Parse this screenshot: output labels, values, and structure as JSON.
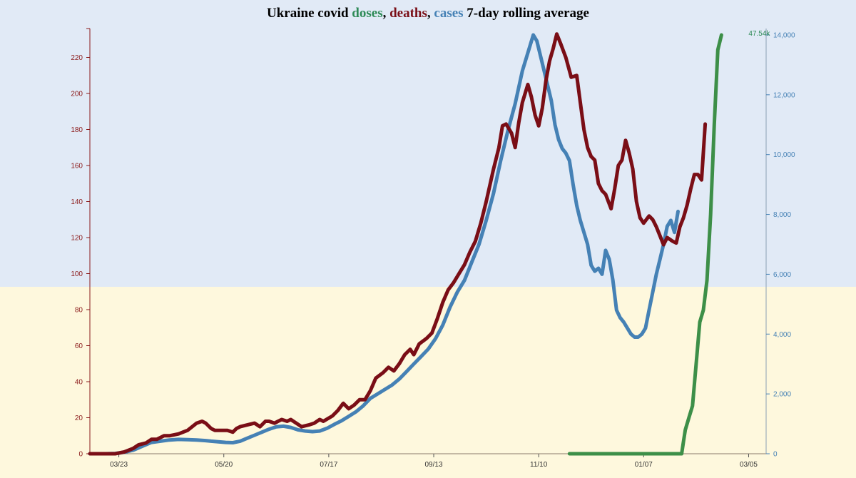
{
  "background": {
    "top_color": "#e1eaf6",
    "bottom_color": "#fef8dd"
  },
  "title": {
    "prefix": "Ukraine covid ",
    "doses": "doses",
    "sep1": ", ",
    "deaths": "deaths",
    "sep2": ", ",
    "cases": "cases",
    "suffix": " 7-day rolling average"
  },
  "colors": {
    "doses": "#2e8b57",
    "deaths": "#7a0e16",
    "cases": "#4581b5",
    "doses_line": "#3d8f48",
    "left_axis": "#8b1a1a",
    "right_axis": "#4581b5"
  },
  "chart_data": {
    "type": "line",
    "title": "Ukraine covid doses, deaths, cases 7-day rolling average",
    "x_ticks": [
      "03/23",
      "05/20",
      "07/17",
      "09/13",
      "11/10",
      "01/07",
      "03/05"
    ],
    "x_tick_days": [
      7,
      65,
      123,
      181,
      239,
      297,
      355
    ],
    "x_range_days": [
      -9,
      370
    ],
    "y_left": {
      "ticks": [
        0,
        20,
        40,
        60,
        80,
        100,
        120,
        140,
        160,
        180,
        200,
        220
      ],
      "range": [
        0,
        235
      ],
      "labels": [
        "0",
        "20",
        "40",
        "60",
        "80",
        "100",
        "120",
        "140",
        "160",
        "180",
        "200",
        "220"
      ]
    },
    "y_right": {
      "ticks": [
        0,
        2000,
        4000,
        6000,
        8000,
        10000,
        12000,
        14000
      ],
      "range": [
        0,
        14100
      ],
      "labels": [
        "0",
        "2,000",
        "4,000",
        "6,000",
        "8,000",
        "10,000",
        "12,000",
        "14,000"
      ]
    },
    "annotation": {
      "text": "47.54k",
      "day": 368,
      "y_right": 14000
    },
    "series": [
      {
        "name": "deaths",
        "axis": "left",
        "points": [
          [
            -9,
            0
          ],
          [
            0,
            0
          ],
          [
            5,
            0
          ],
          [
            10,
            1
          ],
          [
            15,
            3
          ],
          [
            18,
            5
          ],
          [
            22,
            6
          ],
          [
            25,
            8
          ],
          [
            28,
            8
          ],
          [
            32,
            10
          ],
          [
            35,
            10
          ],
          [
            40,
            11
          ],
          [
            45,
            13
          ],
          [
            50,
            17
          ],
          [
            53,
            18
          ],
          [
            55,
            17
          ],
          [
            58,
            14
          ],
          [
            60,
            13
          ],
          [
            63,
            13
          ],
          [
            67,
            13
          ],
          [
            70,
            12
          ],
          [
            72,
            14
          ],
          [
            74,
            15
          ],
          [
            78,
            16
          ],
          [
            82,
            17
          ],
          [
            85,
            15
          ],
          [
            88,
            18
          ],
          [
            90,
            18
          ],
          [
            93,
            17
          ],
          [
            95,
            18
          ],
          [
            97,
            19
          ],
          [
            100,
            18
          ],
          [
            102,
            19
          ],
          [
            105,
            17
          ],
          [
            108,
            15
          ],
          [
            112,
            16
          ],
          [
            115,
            17
          ],
          [
            118,
            19
          ],
          [
            120,
            18
          ],
          [
            125,
            21
          ],
          [
            128,
            24
          ],
          [
            131,
            28
          ],
          [
            134,
            25
          ],
          [
            137,
            27
          ],
          [
            140,
            30
          ],
          [
            143,
            30
          ],
          [
            146,
            35
          ],
          [
            149,
            42
          ],
          [
            153,
            45
          ],
          [
            156,
            48
          ],
          [
            159,
            46
          ],
          [
            162,
            50
          ],
          [
            165,
            55
          ],
          [
            168,
            58
          ],
          [
            170,
            55
          ],
          [
            173,
            61
          ],
          [
            177,
            64
          ],
          [
            180,
            67
          ],
          [
            183,
            75
          ],
          [
            186,
            84
          ],
          [
            189,
            91
          ],
          [
            192,
            95
          ],
          [
            195,
            100
          ],
          [
            198,
            105
          ],
          [
            201,
            112
          ],
          [
            204,
            118
          ],
          [
            207,
            128
          ],
          [
            210,
            140
          ],
          [
            214,
            158
          ],
          [
            217,
            170
          ],
          [
            219,
            182
          ],
          [
            221,
            183
          ],
          [
            224,
            178
          ],
          [
            226,
            170
          ],
          [
            228,
            184
          ],
          [
            230,
            195
          ],
          [
            233,
            205
          ],
          [
            235,
            198
          ],
          [
            237,
            188
          ],
          [
            239,
            182
          ],
          [
            241,
            192
          ],
          [
            243,
            207
          ],
          [
            245,
            218
          ],
          [
            247,
            225
          ],
          [
            249,
            233
          ],
          [
            251,
            228
          ],
          [
            254,
            220
          ],
          [
            257,
            209
          ],
          [
            260,
            210
          ],
          [
            262,
            195
          ],
          [
            264,
            180
          ],
          [
            266,
            170
          ],
          [
            268,
            165
          ],
          [
            270,
            163
          ],
          [
            272,
            150
          ],
          [
            274,
            146
          ],
          [
            276,
            144
          ],
          [
            279,
            136
          ],
          [
            281,
            147
          ],
          [
            283,
            160
          ],
          [
            285,
            163
          ],
          [
            287,
            174
          ],
          [
            289,
            167
          ],
          [
            291,
            158
          ],
          [
            293,
            140
          ],
          [
            295,
            131
          ],
          [
            297,
            128
          ],
          [
            300,
            132
          ],
          [
            302,
            130
          ],
          [
            304,
            126
          ],
          [
            306,
            121
          ],
          [
            308,
            116
          ],
          [
            310,
            120
          ],
          [
            313,
            118
          ],
          [
            315,
            117
          ],
          [
            317,
            126
          ],
          [
            319,
            131
          ],
          [
            321,
            138
          ],
          [
            323,
            147
          ],
          [
            325,
            155
          ],
          [
            327,
            155
          ],
          [
            329,
            152
          ],
          [
            331,
            183
          ]
        ]
      },
      {
        "name": "cases",
        "axis": "right",
        "points": [
          [
            -9,
            0
          ],
          [
            0,
            0
          ],
          [
            5,
            10
          ],
          [
            10,
            50
          ],
          [
            15,
            120
          ],
          [
            20,
            250
          ],
          [
            25,
            380
          ],
          [
            30,
            420
          ],
          [
            35,
            460
          ],
          [
            40,
            480
          ],
          [
            45,
            470
          ],
          [
            50,
            460
          ],
          [
            55,
            440
          ],
          [
            58,
            420
          ],
          [
            62,
            400
          ],
          [
            66,
            380
          ],
          [
            70,
            370
          ],
          [
            74,
            420
          ],
          [
            78,
            520
          ],
          [
            82,
            620
          ],
          [
            86,
            720
          ],
          [
            90,
            820
          ],
          [
            94,
            900
          ],
          [
            98,
            920
          ],
          [
            102,
            880
          ],
          [
            106,
            800
          ],
          [
            110,
            760
          ],
          [
            114,
            740
          ],
          [
            118,
            760
          ],
          [
            122,
            850
          ],
          [
            126,
            980
          ],
          [
            130,
            1100
          ],
          [
            134,
            1250
          ],
          [
            138,
            1400
          ],
          [
            142,
            1600
          ],
          [
            146,
            1850
          ],
          [
            150,
            2000
          ],
          [
            154,
            2150
          ],
          [
            158,
            2300
          ],
          [
            162,
            2500
          ],
          [
            166,
            2750
          ],
          [
            170,
            3000
          ],
          [
            174,
            3250
          ],
          [
            178,
            3500
          ],
          [
            182,
            3850
          ],
          [
            186,
            4300
          ],
          [
            190,
            4900
          ],
          [
            194,
            5400
          ],
          [
            198,
            5800
          ],
          [
            202,
            6400
          ],
          [
            206,
            7000
          ],
          [
            210,
            7800
          ],
          [
            214,
            8700
          ],
          [
            218,
            9800
          ],
          [
            222,
            10800
          ],
          [
            226,
            11700
          ],
          [
            230,
            12800
          ],
          [
            234,
            13600
          ],
          [
            236,
            14000
          ],
          [
            238,
            13800
          ],
          [
            240,
            13300
          ],
          [
            242,
            12800
          ],
          [
            244,
            12300
          ],
          [
            246,
            11800
          ],
          [
            248,
            11000
          ],
          [
            250,
            10500
          ],
          [
            252,
            10200
          ],
          [
            254,
            10050
          ],
          [
            256,
            9800
          ],
          [
            258,
            9000
          ],
          [
            260,
            8300
          ],
          [
            262,
            7800
          ],
          [
            264,
            7400
          ],
          [
            266,
            7000
          ],
          [
            268,
            6300
          ],
          [
            270,
            6100
          ],
          [
            272,
            6200
          ],
          [
            274,
            6000
          ],
          [
            276,
            6800
          ],
          [
            278,
            6500
          ],
          [
            280,
            5800
          ],
          [
            282,
            4800
          ],
          [
            284,
            4550
          ],
          [
            286,
            4400
          ],
          [
            288,
            4200
          ],
          [
            290,
            4000
          ],
          [
            292,
            3900
          ],
          [
            294,
            3900
          ],
          [
            296,
            4000
          ],
          [
            298,
            4200
          ],
          [
            300,
            4800
          ],
          [
            302,
            5400
          ],
          [
            304,
            6000
          ],
          [
            306,
            6500
          ],
          [
            308,
            7000
          ],
          [
            310,
            7600
          ],
          [
            312,
            7800
          ],
          [
            314,
            7400
          ],
          [
            316,
            8100
          ]
        ]
      },
      {
        "name": "doses",
        "axis": "right",
        "points": [
          [
            256,
            0
          ],
          [
            275,
            0
          ],
          [
            290,
            0
          ],
          [
            304,
            0
          ],
          [
            318,
            0
          ],
          [
            319,
            400
          ],
          [
            320,
            800
          ],
          [
            322,
            1200
          ],
          [
            324,
            1600
          ],
          [
            326,
            3000
          ],
          [
            328,
            4400
          ],
          [
            330,
            4800
          ],
          [
            332,
            5800
          ],
          [
            334,
            8000
          ],
          [
            336,
            11000
          ],
          [
            338,
            13500
          ],
          [
            340,
            14000
          ]
        ]
      }
    ]
  }
}
